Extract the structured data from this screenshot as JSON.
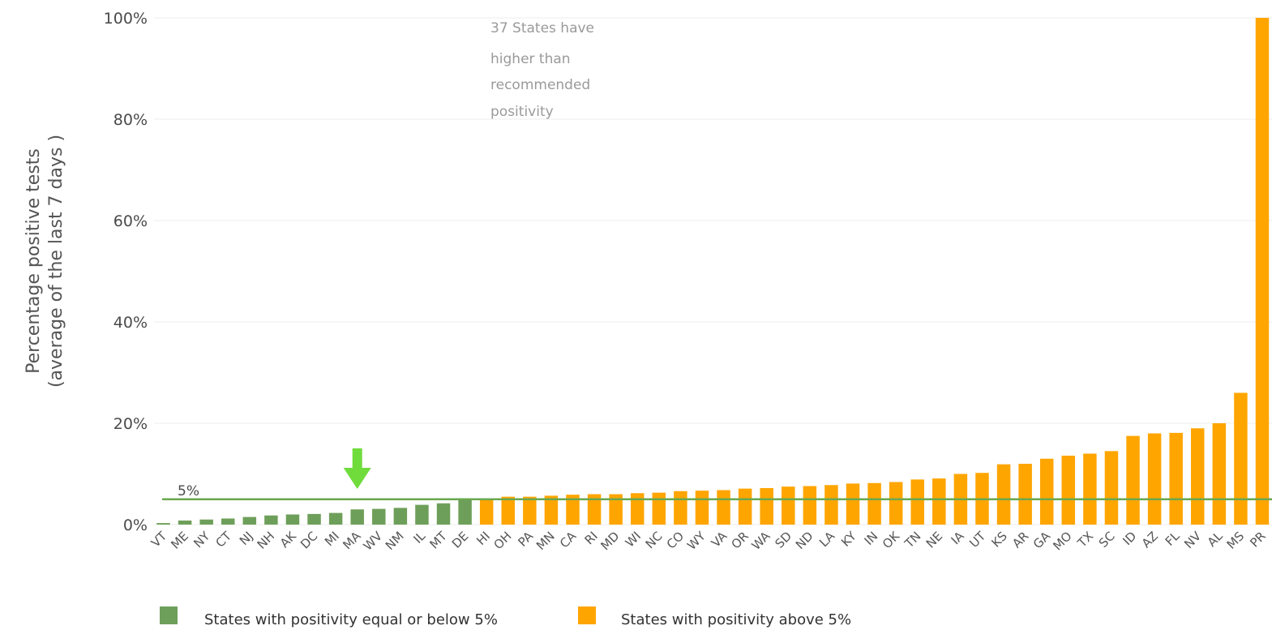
{
  "chart_data": {
    "type": "bar",
    "ylabel_line1": "Percentage positive tests",
    "ylabel_line2": "(average of the last 7 days )",
    "ylim": [
      0,
      100
    ],
    "yticks": [
      0,
      20,
      40,
      60,
      80,
      100
    ],
    "ytick_labels": [
      "0%",
      "20%",
      "40%",
      "60%",
      "80%",
      "100%"
    ],
    "grid": true,
    "categories": [
      "VT",
      "ME",
      "NY",
      "CT",
      "NJ",
      "NH",
      "AK",
      "DC",
      "MI",
      "MA",
      "WV",
      "NM",
      "IL",
      "MT",
      "DE",
      "HI",
      "OH",
      "PA",
      "MN",
      "CA",
      "RI",
      "MD",
      "WI",
      "NC",
      "CO",
      "WY",
      "VA",
      "OR",
      "WA",
      "SD",
      "ND",
      "LA",
      "KY",
      "IN",
      "OK",
      "TN",
      "NE",
      "IA",
      "UT",
      "KS",
      "AR",
      "GA",
      "MO",
      "TX",
      "SC",
      "ID",
      "AZ",
      "FL",
      "NV",
      "AL",
      "MS",
      "PR"
    ],
    "values": [
      0.3,
      0.8,
      1.0,
      1.2,
      1.5,
      1.8,
      2.0,
      2.1,
      2.3,
      3.0,
      3.1,
      3.3,
      3.9,
      4.2,
      4.9,
      5.1,
      5.5,
      5.5,
      5.7,
      5.9,
      6.0,
      6.0,
      6.2,
      6.3,
      6.6,
      6.7,
      6.8,
      7.1,
      7.2,
      7.5,
      7.6,
      7.8,
      8.1,
      8.2,
      8.4,
      8.9,
      9.1,
      10.0,
      10.2,
      11.9,
      12.0,
      13.0,
      13.6,
      14.0,
      14.5,
      17.5,
      18.0,
      18.1,
      19.0,
      20.0,
      26.0,
      100.0
    ],
    "threshold": {
      "value": 5,
      "label": "5%",
      "color": "#6aa84f"
    },
    "annotation": {
      "lines": [
        "37 States have",
        "higher than",
        "recommended",
        "positivity"
      ]
    },
    "arrow": {
      "category": "MA",
      "color": "#6fdc3c"
    },
    "series": [
      {
        "name": "States with positivity equal or below 5%",
        "color": "#6e9f5a"
      },
      {
        "name": "States with positivity above 5%",
        "color": "#ffa500"
      }
    ],
    "legend_position": "bottom-left"
  }
}
